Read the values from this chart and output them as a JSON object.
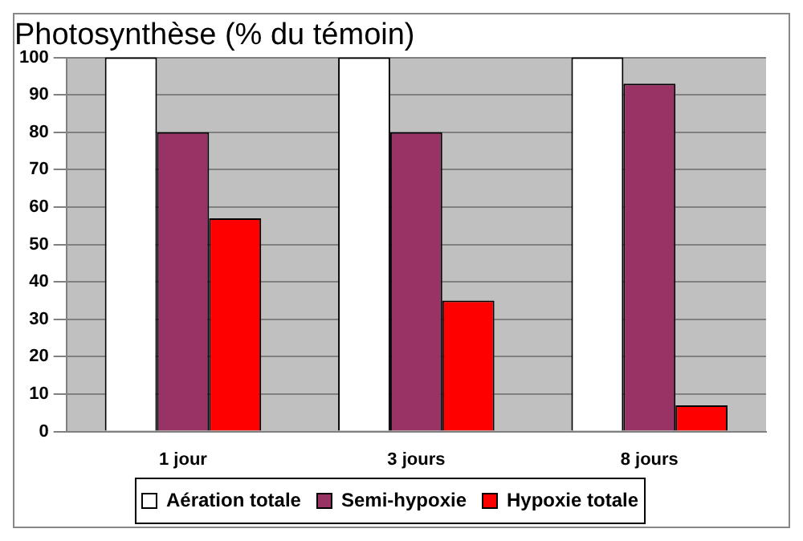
{
  "chart_data": {
    "type": "bar",
    "title": "Photosynthèse (% du témoin)",
    "categories": [
      "1 jour",
      "3 jours",
      "8 jours"
    ],
    "series": [
      {
        "name": "Aération totale",
        "color": "#ffffff",
        "values": [
          100,
          100,
          100
        ]
      },
      {
        "name": "Semi-hypoxie",
        "color": "#993366",
        "values": [
          80,
          80,
          93
        ]
      },
      {
        "name": "Hypoxie totale",
        "color": "#ff0000",
        "values": [
          57,
          35,
          7
        ]
      }
    ],
    "ylim": [
      0,
      100
    ],
    "yticks": [
      0,
      10,
      20,
      30,
      40,
      50,
      60,
      70,
      80,
      90,
      100
    ],
    "grid": "y",
    "legend": "bottom"
  }
}
